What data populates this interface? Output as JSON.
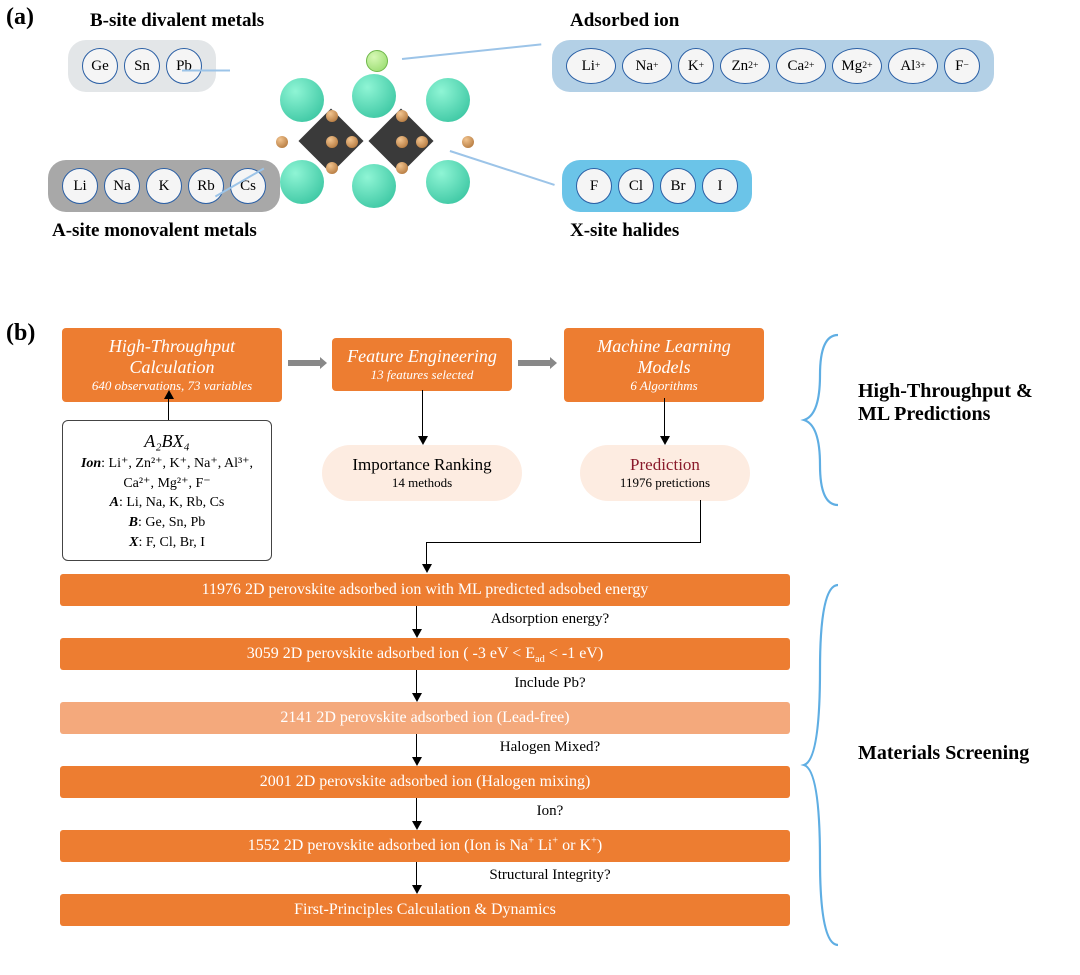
{
  "labels": {
    "a": "(a)",
    "b": "(b)"
  },
  "panelA": {
    "headings": {
      "bsite": "B-site divalent metals",
      "asite": "A-site monovalent metals",
      "adsorbed": "Adsorbed ion",
      "xsite": "X-site halides"
    },
    "groups": {
      "bsite": {
        "bg": "#e3e6e8",
        "ions": [
          "Ge",
          "Sn",
          "Pb"
        ]
      },
      "asite": {
        "bg": "#a8a8a8",
        "ions": [
          "Li",
          "Na",
          "K",
          "Rb",
          "Cs"
        ]
      },
      "adsorbed": {
        "bg": "#b3d0e6",
        "ions": [
          "Li⁺",
          "Na⁺",
          "K⁺",
          "Zn²⁺",
          "Ca²⁺",
          "Mg²⁺",
          "Al³⁺",
          "F⁻"
        ]
      },
      "xsite": {
        "bg": "#6bc4e8",
        "ions": [
          "F",
          "Cl",
          "Br",
          "I"
        ]
      }
    }
  },
  "panelB": {
    "boxes": {
      "htc": {
        "t1": "High-Throughput Calculation",
        "t2": "640 observations, 73 variables"
      },
      "fe": {
        "t1": "Feature Engineering",
        "t2": "13 features selected"
      },
      "ml": {
        "t1": "Machine Learning Models",
        "t2": "6 Algorithms"
      }
    },
    "ovals": {
      "importance": {
        "r1": "Importance Ranking",
        "r2": "14 methods"
      },
      "prediction": {
        "r1": "Prediction",
        "r2": "11976 pretictions",
        "r1_color": "#8a1a2b"
      }
    },
    "input": {
      "formula": "A₂BX₄",
      "ion_label": "Ion",
      "ion_list": ": Li⁺, Zn²⁺, K⁺, Na⁺, Al³⁺, Ca²⁺, Mg²⁺, F⁻",
      "A": "A",
      "A_list": ": Li, Na, K, Rb, Cs",
      "B": "B",
      "B_list": ": Ge, Sn, Pb",
      "X": "X",
      "X_list": ": F, Cl, Br, I"
    },
    "section_labels": {
      "ht_ml": "High-Throughput & ML Predictions",
      "screening": "Materials Screening"
    },
    "screening": {
      "bars": [
        {
          "text": "11976 2D perovskite adsorbed ion with ML predicted adsobed energy",
          "light": false
        },
        {
          "text": "3059 2D perovskite adsorbed ion   ( -3 eV < E_ad < -1 eV)",
          "light": false
        },
        {
          "text": "2141 2D perovskite adsorbed ion   (Lead-free)",
          "light": true
        },
        {
          "text": "2001 2D perovskite adsorbed ion   (Halogen mixing)",
          "light": false
        },
        {
          "text": "1552 2D perovskite adsorbed ion   (Ion is Na⁺ Li⁺ or K⁺)",
          "light": false
        },
        {
          "text": "First-Principles Calculation & Dynamics",
          "light": false
        }
      ],
      "questions": [
        "Adsorption energy?",
        "Include Pb?",
        "Halogen Mixed?",
        "Ion?",
        "Structural Integrity?"
      ]
    }
  },
  "colors": {
    "orange": "#ed7d31",
    "orange_light": "#f4a97c",
    "oval_bg": "#fdece1",
    "brace": "#5faee3"
  }
}
